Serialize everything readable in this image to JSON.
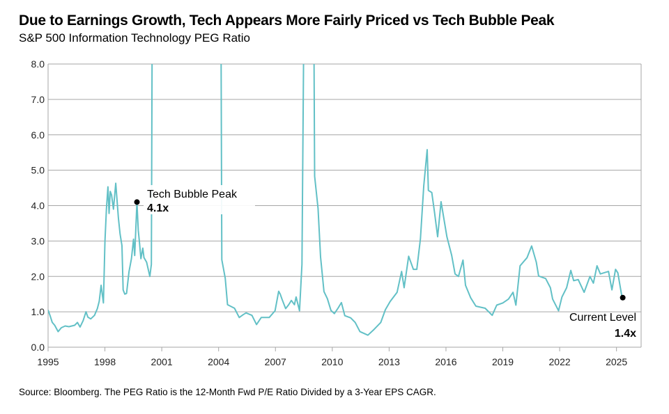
{
  "header": {
    "title": "Due to Earnings Growth, Tech Appears More Fairly Priced vs Tech Bubble Peak",
    "subtitle": "S&P 500 Information Technology PEG Ratio"
  },
  "footer": {
    "source": "Source: Bloomberg. The PEG Ratio is the 12-Month Fwd P/E Ratio Divided by a 3-Year EPS CAGR."
  },
  "chart_data": {
    "type": "line",
    "title": "Due to Earnings Growth, Tech Appears More Fairly Priced vs Tech Bubble Peak",
    "subtitle": "S&P 500 Information Technology PEG Ratio",
    "xlabel": "",
    "ylabel": "",
    "xlim": [
      1995,
      2026.3
    ],
    "ylim": [
      0,
      8
    ],
    "grid": true,
    "line_color": "#62c0c6",
    "x_ticks": [
      "1995",
      "1998",
      "2001",
      "2004",
      "2007",
      "2010",
      "2013",
      "2016",
      "2019",
      "2022",
      "2025"
    ],
    "x_tick_values": [
      1995,
      1998,
      2001,
      2004,
      2007,
      2010,
      2013,
      2016,
      2019,
      2022,
      2025
    ],
    "y_ticks": [
      "0.0",
      "1.0",
      "2.0",
      "3.0",
      "4.0",
      "5.0",
      "6.0",
      "7.0",
      "8.0"
    ],
    "y_tick_values": [
      0,
      1,
      2,
      3,
      4,
      5,
      6,
      7,
      8
    ],
    "series": [
      {
        "points": [
          [
            1995.0,
            1.05
          ],
          [
            1995.1,
            0.9
          ],
          [
            1995.22,
            0.7
          ],
          [
            1995.35,
            0.62
          ],
          [
            1995.53,
            0.44
          ],
          [
            1995.7,
            0.55
          ],
          [
            1995.9,
            0.6
          ],
          [
            1996.1,
            0.58
          ],
          [
            1996.4,
            0.62
          ],
          [
            1996.55,
            0.7
          ],
          [
            1996.69,
            0.57
          ],
          [
            1996.85,
            0.75
          ],
          [
            1997.0,
            1.0
          ],
          [
            1997.1,
            0.85
          ],
          [
            1997.25,
            0.8
          ],
          [
            1997.45,
            0.9
          ],
          [
            1997.6,
            1.09
          ],
          [
            1997.7,
            1.3
          ],
          [
            1997.8,
            1.75
          ],
          [
            1997.92,
            1.25
          ],
          [
            1998.0,
            2.99
          ],
          [
            1998.08,
            3.9
          ],
          [
            1998.16,
            4.53
          ],
          [
            1998.22,
            3.78
          ],
          [
            1998.28,
            4.4
          ],
          [
            1998.35,
            4.3
          ],
          [
            1998.45,
            3.9
          ],
          [
            1998.57,
            4.63
          ],
          [
            1998.71,
            3.65
          ],
          [
            1998.8,
            3.2
          ],
          [
            1998.9,
            2.87
          ],
          [
            1998.96,
            1.62
          ],
          [
            1999.05,
            1.5
          ],
          [
            1999.14,
            1.52
          ],
          [
            1999.27,
            2.13
          ],
          [
            1999.4,
            2.5
          ],
          [
            1999.51,
            3.05
          ],
          [
            1999.57,
            2.59
          ],
          [
            1999.69,
            4.1
          ],
          [
            1999.76,
            3.3
          ],
          [
            1999.82,
            2.99
          ],
          [
            1999.9,
            2.5
          ],
          [
            2000.0,
            2.8
          ],
          [
            2000.06,
            2.53
          ],
          [
            2000.2,
            2.4
          ],
          [
            2000.37,
            2.0
          ],
          [
            2000.45,
            2.34
          ],
          [
            2000.49,
            8.6
          ],
          [
            2004.13,
            8.6
          ],
          [
            2004.17,
            2.47
          ],
          [
            2004.35,
            1.95
          ],
          [
            2004.47,
            1.2
          ],
          [
            2004.84,
            1.1
          ],
          [
            2005.09,
            0.84
          ],
          [
            2005.3,
            0.92
          ],
          [
            2005.45,
            0.97
          ],
          [
            2005.76,
            0.9
          ],
          [
            2006.0,
            0.64
          ],
          [
            2006.25,
            0.84
          ],
          [
            2006.67,
            0.84
          ],
          [
            2006.98,
            1.03
          ],
          [
            2007.17,
            1.58
          ],
          [
            2007.25,
            1.5
          ],
          [
            2007.35,
            1.35
          ],
          [
            2007.54,
            1.09
          ],
          [
            2007.7,
            1.2
          ],
          [
            2007.84,
            1.32
          ],
          [
            2008.0,
            1.2
          ],
          [
            2008.09,
            1.42
          ],
          [
            2008.27,
            1.03
          ],
          [
            2008.4,
            2.34
          ],
          [
            2008.49,
            8.6
          ],
          [
            2009.03,
            8.6
          ],
          [
            2009.07,
            4.83
          ],
          [
            2009.25,
            3.92
          ],
          [
            2009.38,
            2.55
          ],
          [
            2009.56,
            1.57
          ],
          [
            2009.74,
            1.37
          ],
          [
            2009.93,
            1.04
          ],
          [
            2010.11,
            0.95
          ],
          [
            2010.3,
            1.1
          ],
          [
            2010.48,
            1.26
          ],
          [
            2010.66,
            0.89
          ],
          [
            2010.97,
            0.83
          ],
          [
            2011.21,
            0.7
          ],
          [
            2011.46,
            0.44
          ],
          [
            2011.88,
            0.34
          ],
          [
            2012.2,
            0.5
          ],
          [
            2012.56,
            0.7
          ],
          [
            2012.8,
            1.06
          ],
          [
            2013.05,
            1.29
          ],
          [
            2013.42,
            1.55
          ],
          [
            2013.66,
            2.14
          ],
          [
            2013.79,
            1.68
          ],
          [
            2014.03,
            2.57
          ],
          [
            2014.28,
            2.2
          ],
          [
            2014.46,
            2.2
          ],
          [
            2014.65,
            3.06
          ],
          [
            2014.83,
            4.56
          ],
          [
            2015.01,
            5.58
          ],
          [
            2015.07,
            4.43
          ],
          [
            2015.25,
            4.37
          ],
          [
            2015.4,
            3.8
          ],
          [
            2015.56,
            3.12
          ],
          [
            2015.74,
            4.11
          ],
          [
            2016.05,
            3.12
          ],
          [
            2016.3,
            2.6
          ],
          [
            2016.48,
            2.07
          ],
          [
            2016.66,
            2.0
          ],
          [
            2016.9,
            2.46
          ],
          [
            2017.03,
            1.75
          ],
          [
            2017.3,
            1.4
          ],
          [
            2017.58,
            1.16
          ],
          [
            2018.07,
            1.1
          ],
          [
            2018.44,
            0.9
          ],
          [
            2018.68,
            1.19
          ],
          [
            2019.0,
            1.25
          ],
          [
            2019.3,
            1.36
          ],
          [
            2019.54,
            1.55
          ],
          [
            2019.69,
            1.19
          ],
          [
            2019.91,
            2.3
          ],
          [
            2020.28,
            2.53
          ],
          [
            2020.52,
            2.86
          ],
          [
            2020.77,
            2.4
          ],
          [
            2020.89,
            2.01
          ],
          [
            2021.26,
            1.94
          ],
          [
            2021.51,
            1.68
          ],
          [
            2021.63,
            1.36
          ],
          [
            2021.94,
            1.03
          ],
          [
            2022.12,
            1.42
          ],
          [
            2022.37,
            1.68
          ],
          [
            2022.59,
            2.17
          ],
          [
            2022.74,
            1.88
          ],
          [
            2022.98,
            1.91
          ],
          [
            2023.29,
            1.55
          ],
          [
            2023.6,
            2.0
          ],
          [
            2023.78,
            1.81
          ],
          [
            2023.97,
            2.3
          ],
          [
            2024.15,
            2.07
          ],
          [
            2024.58,
            2.14
          ],
          [
            2024.76,
            1.62
          ],
          [
            2024.95,
            2.2
          ],
          [
            2025.07,
            2.1
          ],
          [
            2025.29,
            1.42
          ]
        ]
      }
    ],
    "annotations": [
      {
        "label": "Tech Bubble Peak",
        "value_label": "4.1x",
        "x": 1999.69,
        "y": 4.1
      },
      {
        "label": "Current Level",
        "value_label": "1.4x",
        "x": 2025.33,
        "y": 1.4
      }
    ]
  }
}
